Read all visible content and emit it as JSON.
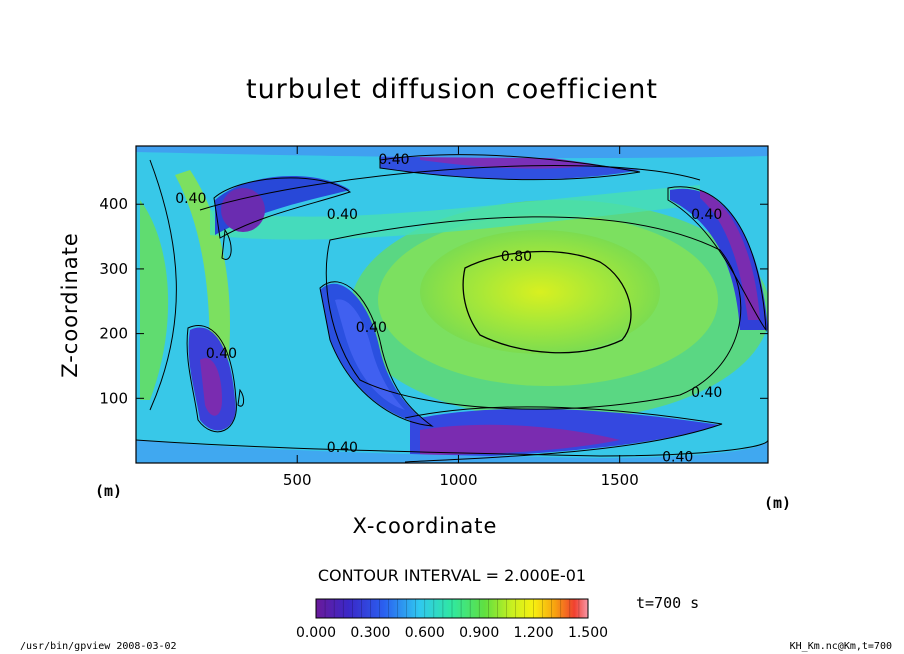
{
  "chart_data": {
    "type": "heatmap",
    "title": "turbulet diffusion coefficient",
    "xlabel": "X-coordinate",
    "ylabel": "Z-coordinate",
    "x_unit": "(m)",
    "y_unit": "(m)",
    "xlim": [
      0,
      1960
    ],
    "ylim": [
      0,
      490
    ],
    "x_ticks": [
      500,
      1000,
      1500
    ],
    "y_ticks": [
      100,
      200,
      300,
      400
    ],
    "contour_interval_text": "CONTOUR INTERVAL = 2.000E-01",
    "time_text": "t=700 s",
    "colorbar": {
      "min": 0.0,
      "max": 1.5,
      "tick_labels": [
        "0.000",
        "0.300",
        "0.600",
        "0.900",
        "1.200",
        "1.500"
      ],
      "tick_values": [
        0.0,
        0.3,
        0.6,
        0.9,
        1.2,
        1.5
      ]
    },
    "contour_labels": [
      {
        "text": "0.40",
        "x": 800,
        "z": 470
      },
      {
        "text": "0.40",
        "x": 170,
        "z": 410
      },
      {
        "text": "0.40",
        "x": 640,
        "z": 385
      },
      {
        "text": "0.40",
        "x": 1770,
        "z": 385
      },
      {
        "text": "0.80",
        "x": 1180,
        "z": 320
      },
      {
        "text": "0.40",
        "x": 730,
        "z": 210
      },
      {
        "text": "0.40",
        "x": 265,
        "z": 170
      },
      {
        "text": "0.40",
        "x": 1770,
        "z": 110
      },
      {
        "text": "0.40",
        "x": 640,
        "z": 25
      },
      {
        "text": "0.40",
        "x": 1680,
        "z": 10
      }
    ]
  },
  "footer": {
    "left": "/usr/bin/gpview   2008-03-02",
    "right": "KH_Km.nc@Km,t=700"
  }
}
